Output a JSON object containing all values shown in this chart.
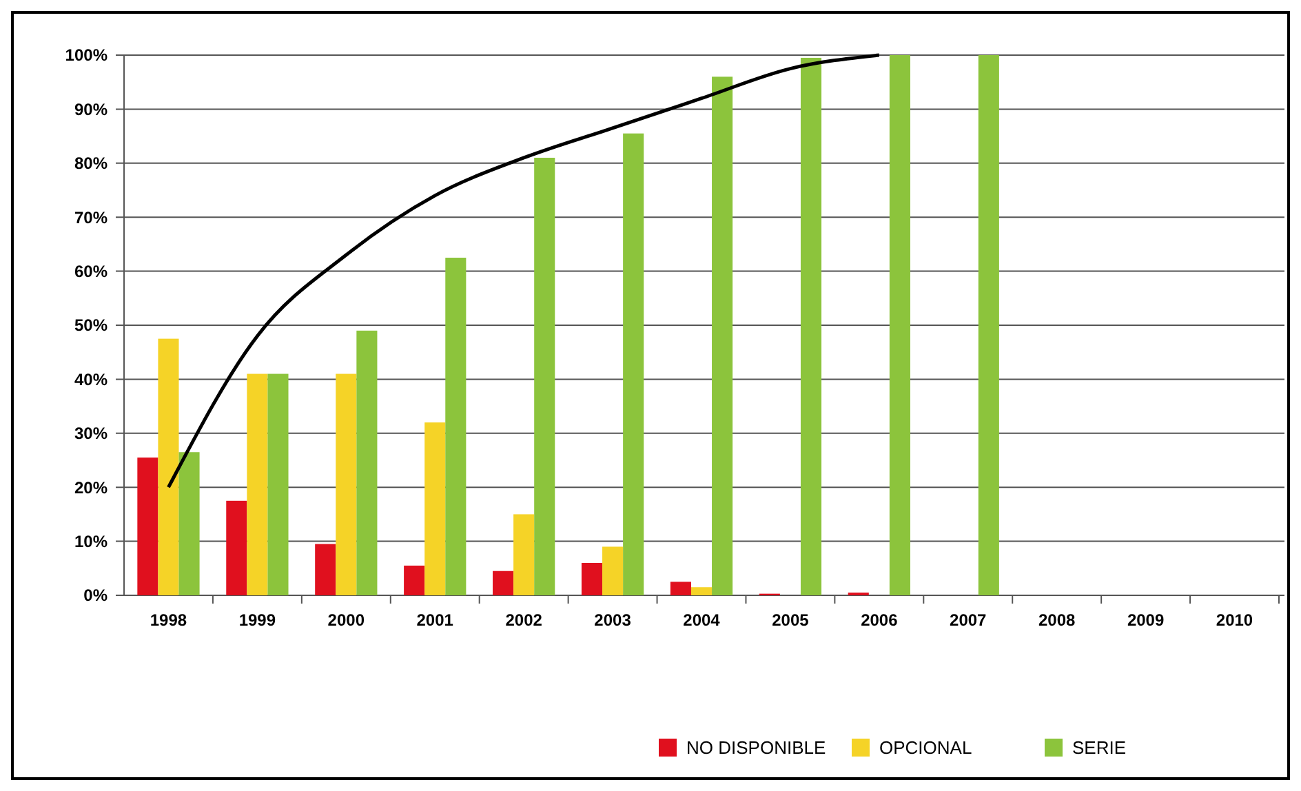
{
  "chart_data": {
    "type": "bar",
    "categories": [
      "1998",
      "1999",
      "2000",
      "2001",
      "2002",
      "2003",
      "2004",
      "2005",
      "2006",
      "2007",
      "2008",
      "2009",
      "2010"
    ],
    "series": [
      {
        "name": "NO DISPONIBLE",
        "color": "#e0101e",
        "values": [
          25.5,
          17.5,
          9.5,
          5.5,
          4.5,
          6,
          2.5,
          0.3,
          0.5,
          0,
          null,
          null,
          null
        ]
      },
      {
        "name": "OPCIONAL",
        "color": "#f5d327",
        "values": [
          47.5,
          41,
          41,
          32,
          15,
          9,
          1.5,
          0,
          0,
          0,
          null,
          null,
          null
        ]
      },
      {
        "name": "SERIE",
        "color": "#8cc43c",
        "values": [
          26.5,
          41,
          49,
          62.5,
          81,
          85.5,
          96,
          99.5,
          100,
          100,
          null,
          null,
          null
        ]
      },
      {
        "type": "line",
        "color": "#000000",
        "values": [
          20,
          48,
          63,
          74,
          81,
          86.5,
          92,
          97.5,
          100,
          null,
          null,
          null,
          null
        ]
      }
    ],
    "ylim": [
      0,
      100
    ],
    "yticks": [
      {
        "value": 0,
        "label": "0%"
      },
      {
        "value": 10,
        "label": "10%"
      },
      {
        "value": 20,
        "label": "20%"
      },
      {
        "value": 30,
        "label": "30%"
      },
      {
        "value": 40,
        "label": "40%"
      },
      {
        "value": 50,
        "label": "50%"
      },
      {
        "value": 60,
        "label": "60%"
      },
      {
        "value": 70,
        "label": "70%"
      },
      {
        "value": 80,
        "label": "80%"
      },
      {
        "value": 90,
        "label": "90%"
      },
      {
        "value": 100,
        "label": "100%"
      }
    ],
    "grid": "y",
    "legend": "bottom right",
    "marker": "none",
    "line_style": "solid"
  }
}
